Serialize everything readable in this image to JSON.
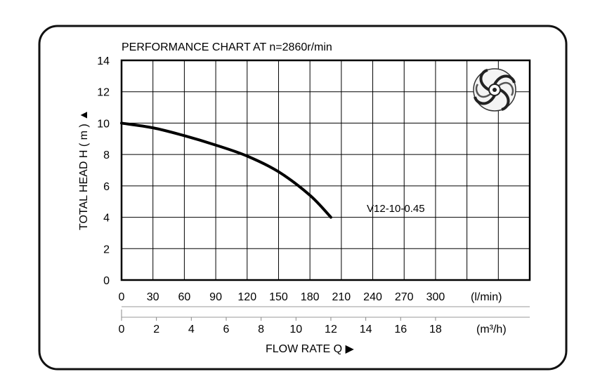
{
  "chart_data": {
    "type": "line",
    "title": "PERFORMANCE  CHART  AT  n=2860r/min",
    "ylabel": "TOTAL HEAD  H ( m ) ▲",
    "xlabel": "FLOW  RATE  Q  ▶",
    "ylim": [
      0,
      14
    ],
    "yticks": [
      "0",
      "2",
      "4",
      "6",
      "8",
      "10",
      "12",
      "14"
    ],
    "xlim_lmin": [
      0,
      390
    ],
    "xticks_lmin": [
      "0",
      "30",
      "60",
      "90",
      "120",
      "150",
      "180",
      "210",
      "240",
      "270",
      "300"
    ],
    "xunit_lmin": "(l/min)",
    "xticks_m3h": [
      "0",
      "2",
      "4",
      "6",
      "8",
      "10",
      "12",
      "14",
      "16",
      "18"
    ],
    "xunit_m3h": "(m³/h)",
    "grid": true,
    "series": [
      {
        "name": "V12-10-0.45",
        "x": [
          0,
          30,
          60,
          90,
          120,
          150,
          180,
          200
        ],
        "y": [
          10,
          9.7,
          9.2,
          8.6,
          7.9,
          6.9,
          5.4,
          4.0
        ]
      }
    ]
  }
}
